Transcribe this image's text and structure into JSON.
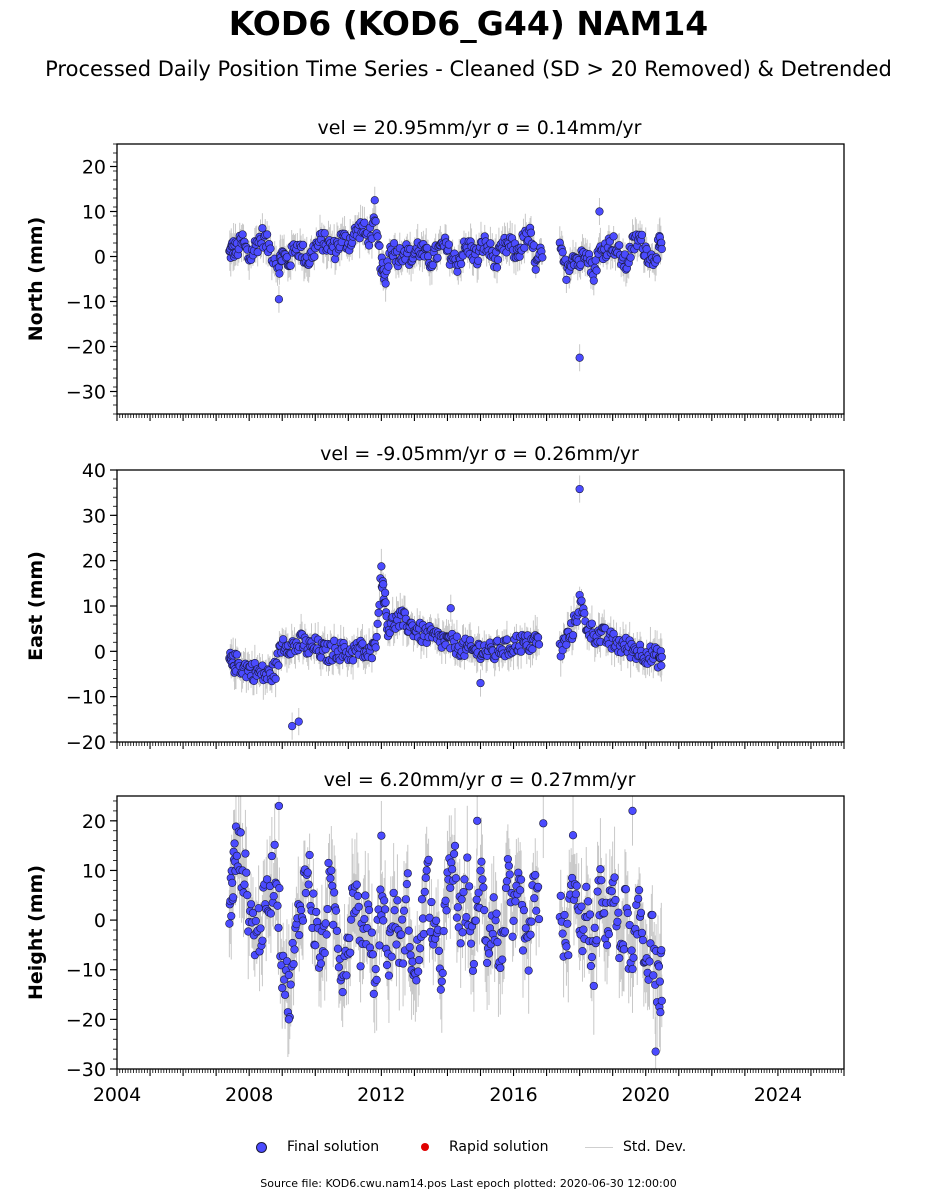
{
  "title": "KOD6 (KOD6_G44) NAM14",
  "subtitle": "Processed Daily Position Time Series - Cleaned (SD > 20 Removed) & Detrended",
  "legend": {
    "final": "Final solution",
    "rapid": "Rapid solution",
    "stddev": "Std. Dev."
  },
  "footer": "Source file: KOD6.cwu.nam14.pos  Last epoch plotted: 2020-06-30 12:00:00",
  "colors": {
    "final": "#4b4bff",
    "rapid": "#e00000",
    "stddev": "#c8c8c8",
    "edge": "#1a1a3a"
  },
  "chart_data": [
    {
      "type": "scatter",
      "panel": "north",
      "title": "vel = 20.95mm/yr   σ = 0.14mm/yr",
      "ylabel": "North (mm)",
      "xlim": [
        2004,
        2026
      ],
      "ylim": [
        -35,
        25
      ],
      "yticks": [
        -30,
        -20,
        -10,
        0,
        10,
        20
      ],
      "xticks": [
        2004,
        2008,
        2012,
        2016,
        2020,
        2024
      ],
      "show_xticklabels": false,
      "series": [
        {
          "name": "Final solution",
          "x": [
            2007.4,
            2007.5,
            2007.6,
            2007.8,
            2008.0,
            2008.2,
            2008.4,
            2008.6,
            2008.9,
            2009.0,
            2009.2,
            2009.4,
            2009.6,
            2009.8,
            2010.0,
            2010.2,
            2010.4,
            2010.6,
            2010.8,
            2011.0,
            2011.2,
            2011.4,
            2011.6,
            2011.8,
            2012.0,
            2012.1,
            2012.3,
            2012.5,
            2012.7,
            2012.9,
            2013.1,
            2013.3,
            2013.5,
            2013.7,
            2013.9,
            2014.1,
            2014.3,
            2014.5,
            2014.7,
            2014.9,
            2015.1,
            2015.3,
            2015.5,
            2015.7,
            2015.9,
            2016.1,
            2016.3,
            2016.5,
            2016.7,
            2016.9,
            2017.4,
            2017.6,
            2017.8,
            2018.0,
            2018.2,
            2018.4,
            2018.6,
            2018.8,
            2019.0,
            2019.2,
            2019.4,
            2019.6,
            2019.8,
            2020.0,
            2020.2,
            2020.4,
            2020.5
          ],
          "y": [
            0.5,
            2.0,
            1.2,
            3.5,
            -0.5,
            2.5,
            4.5,
            2.0,
            -2.0,
            0.5,
            -1.5,
            2.5,
            1.0,
            -1.0,
            2.0,
            3.5,
            2.5,
            1.5,
            4.0,
            3.0,
            5.0,
            6.5,
            4.0,
            7.0,
            -2.0,
            -5.0,
            2.5,
            0.0,
            1.5,
            -0.5,
            2.0,
            0.5,
            -1.0,
            1.0,
            2.5,
            0.0,
            -1.5,
            1.5,
            2.0,
            -0.5,
            3.0,
            1.0,
            -1.0,
            2.0,
            2.5,
            0.5,
            3.5,
            4.5,
            -2.0,
            1.5,
            1.0,
            -3.0,
            0.5,
            -1.5,
            2.5,
            -4.0,
            1.0,
            2.0,
            3.0,
            0.5,
            -2.0,
            2.5,
            4.0,
            1.5,
            -1.0,
            2.5,
            1.5
          ],
          "outliers": [
            [
              2018.0,
              -22.5
            ],
            [
              2011.8,
              12.5
            ],
            [
              2008.9,
              -9.5
            ],
            [
              2018.6,
              10.0
            ]
          ]
        }
      ]
    },
    {
      "type": "scatter",
      "panel": "east",
      "title": "vel = -9.05mm/yr   σ = 0.26mm/yr",
      "ylabel": "East (mm)",
      "xlim": [
        2004,
        2026
      ],
      "ylim": [
        -20,
        40
      ],
      "yticks": [
        -20,
        -10,
        0,
        10,
        20,
        30,
        40
      ],
      "xticks": [
        2004,
        2008,
        2012,
        2016,
        2020,
        2024
      ],
      "show_xticklabels": false,
      "series": [
        {
          "name": "Final solution",
          "x": [
            2007.4,
            2007.5,
            2007.6,
            2007.8,
            2008.0,
            2008.2,
            2008.4,
            2008.6,
            2008.8,
            2009.0,
            2009.2,
            2009.4,
            2009.6,
            2009.8,
            2010.0,
            2010.2,
            2010.4,
            2010.6,
            2010.8,
            2011.0,
            2011.2,
            2011.4,
            2011.6,
            2011.8,
            2012.0,
            2012.1,
            2012.2,
            2012.4,
            2012.6,
            2012.8,
            2013.0,
            2013.2,
            2013.4,
            2013.6,
            2013.8,
            2014.0,
            2014.2,
            2014.4,
            2014.6,
            2014.8,
            2015.0,
            2015.2,
            2015.4,
            2015.6,
            2015.8,
            2016.0,
            2016.2,
            2016.4,
            2016.6,
            2016.8,
            2017.4,
            2017.6,
            2017.8,
            2018.0,
            2018.2,
            2018.4,
            2018.6,
            2018.8,
            2019.0,
            2019.2,
            2019.4,
            2019.6,
            2019.8,
            2020.0,
            2020.2,
            2020.4,
            2020.5
          ],
          "y": [
            -2.0,
            -3.0,
            -2.5,
            -3.5,
            -4.0,
            -4.5,
            -5.0,
            -5.5,
            -4.0,
            2.0,
            1.5,
            1.0,
            2.0,
            0.5,
            1.0,
            0.0,
            -0.5,
            0.5,
            0.0,
            -0.5,
            0.0,
            0.5,
            -1.0,
            0.5,
            17.0,
            12.0,
            5.0,
            6.5,
            7.0,
            6.0,
            5.0,
            4.0,
            3.5,
            3.0,
            2.5,
            2.0,
            1.5,
            1.0,
            0.5,
            0.0,
            0.5,
            0.0,
            -0.5,
            1.0,
            0.5,
            1.5,
            2.0,
            1.5,
            2.0,
            2.5,
            0.0,
            2.5,
            5.0,
            11.0,
            6.0,
            4.0,
            3.5,
            3.0,
            2.0,
            1.5,
            1.0,
            0.5,
            0.0,
            -0.5,
            -1.0,
            -1.5,
            -2.0
          ],
          "outliers": [
            [
              2018.0,
              35.8
            ],
            [
              2009.3,
              -16.5
            ],
            [
              2009.5,
              -15.5
            ],
            [
              2014.1,
              9.5
            ],
            [
              2015.0,
              -7.0
            ]
          ]
        }
      ]
    },
    {
      "type": "scatter",
      "panel": "height",
      "title": "vel = 6.20mm/yr   σ = 0.27mm/yr",
      "ylabel": "Height (mm)",
      "xlim": [
        2004,
        2026
      ],
      "ylim": [
        -30,
        25
      ],
      "yticks": [
        -30,
        -20,
        -10,
        0,
        10,
        20
      ],
      "xticks": [
        2004,
        2008,
        2012,
        2016,
        2020,
        2024
      ],
      "show_xticklabels": true,
      "series": [
        {
          "name": "Final solution",
          "x": [
            2007.4,
            2007.5,
            2007.6,
            2007.8,
            2008.0,
            2008.2,
            2008.4,
            2008.6,
            2008.8,
            2009.0,
            2009.2,
            2009.4,
            2009.6,
            2009.8,
            2010.0,
            2010.2,
            2010.4,
            2010.6,
            2010.8,
            2011.0,
            2011.2,
            2011.4,
            2011.6,
            2011.8,
            2012.0,
            2012.2,
            2012.4,
            2012.6,
            2012.8,
            2013.0,
            2013.2,
            2013.4,
            2013.6,
            2013.8,
            2014.0,
            2014.2,
            2014.4,
            2014.6,
            2014.8,
            2015.0,
            2015.2,
            2015.4,
            2015.6,
            2015.8,
            2016.0,
            2016.2,
            2016.4,
            2016.6,
            2016.8,
            2017.4,
            2017.6,
            2017.8,
            2018.0,
            2018.2,
            2018.4,
            2018.6,
            2018.8,
            2019.0,
            2019.2,
            2019.4,
            2019.6,
            2019.8,
            2020.0,
            2020.2,
            2020.4,
            2020.5
          ],
          "y": [
            2.0,
            8.0,
            14.0,
            12.0,
            2.0,
            -3.0,
            0.0,
            5.0,
            12.0,
            -8.0,
            -15.0,
            -5.0,
            5.0,
            10.0,
            -2.0,
            -8.0,
            6.0,
            2.0,
            -10.0,
            -4.0,
            8.0,
            -6.0,
            3.0,
            -12.0,
            6.0,
            -8.0,
            2.0,
            -6.0,
            4.0,
            -14.0,
            -2.0,
            8.0,
            -4.0,
            -10.0,
            5.0,
            12.0,
            -3.0,
            7.0,
            -8.0,
            10.0,
            -5.0,
            3.0,
            -10.0,
            8.0,
            -2.0,
            6.0,
            -9.0,
            4.0,
            2.0,
            5.0,
            -8.0,
            12.0,
            -4.0,
            3.0,
            -10.0,
            6.0,
            -2.0,
            8.0,
            -6.0,
            2.0,
            -12.0,
            4.0,
            -8.0,
            -4.0,
            -15.0,
            -10.0
          ],
          "outliers": [
            [
              2008.9,
              23.0
            ],
            [
              2019.6,
              22.0
            ],
            [
              2020.3,
              -26.5
            ],
            [
              2009.2,
              -20.0
            ],
            [
              2012.0,
              17.0
            ],
            [
              2016.9,
              19.5
            ],
            [
              2014.9,
              20.0
            ]
          ]
        }
      ]
    }
  ]
}
